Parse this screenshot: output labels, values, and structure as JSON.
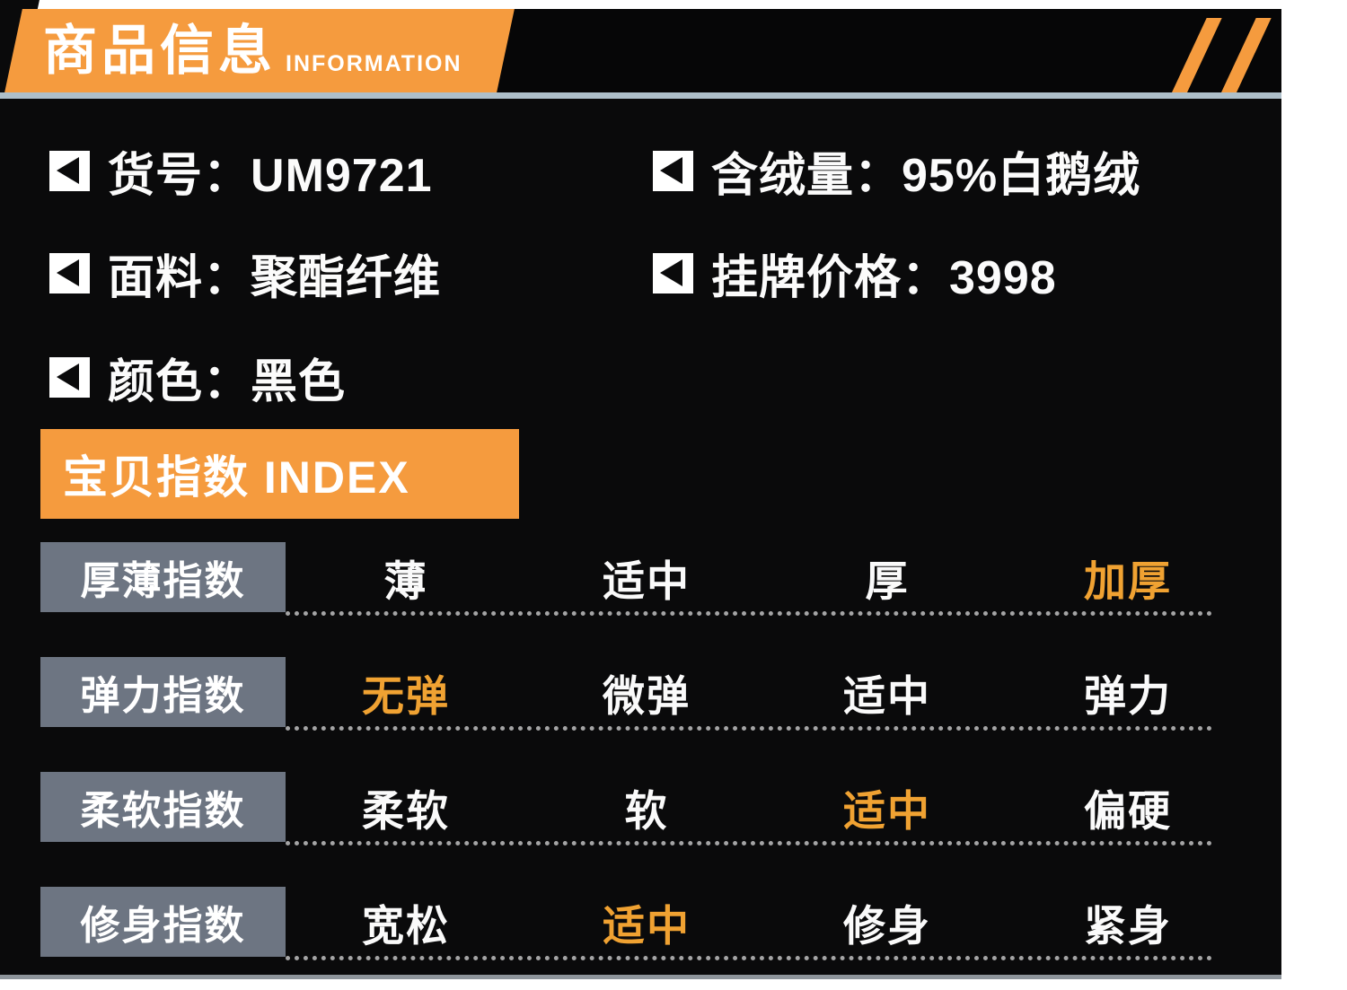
{
  "colors": {
    "accent_orange": "#f59b3e",
    "highlight_orange": "#f0a232",
    "label_box_gray": "#6d7582",
    "background_black": "#0a0a0b",
    "divider_blue_gray": "#aebfc9",
    "bottom_line_gray": "#8d949b"
  },
  "header": {
    "title": "商品信息",
    "subtitle": "INFORMATION"
  },
  "icons": {
    "bullet": {
      "name": "left-triangle-bullet",
      "glyph": "◀"
    }
  },
  "product_info": {
    "left_column": [
      {
        "label": "货号：",
        "value": "UM9721"
      },
      {
        "label": "面料：",
        "value": "聚酯纤维"
      },
      {
        "label": "颜色：",
        "value": "黑色"
      }
    ],
    "right_column": [
      {
        "label": "含绒量：",
        "value": "95%白鹅绒"
      },
      {
        "label": "挂牌价格：",
        "value": "3998"
      }
    ]
  },
  "index_section": {
    "title": "宝贝指数 INDEX",
    "rows": [
      {
        "label": "厚薄指数",
        "options": [
          "薄",
          "适中",
          "厚",
          "加厚"
        ],
        "highlighted_index": 3,
        "highlighted_value": "加厚"
      },
      {
        "label": "弹力指数",
        "options": [
          "无弹",
          "微弹",
          "适中",
          "弹力"
        ],
        "highlighted_index": 0,
        "highlighted_value": "无弹"
      },
      {
        "label": "柔软指数",
        "options": [
          "柔软",
          "软",
          "适中",
          "偏硬"
        ],
        "highlighted_index": 2,
        "highlighted_value": "适中"
      },
      {
        "label": "修身指数",
        "options": [
          "宽松",
          "适中",
          "修身",
          "紧身"
        ],
        "highlighted_index": 1,
        "highlighted_value": "适中"
      }
    ]
  }
}
